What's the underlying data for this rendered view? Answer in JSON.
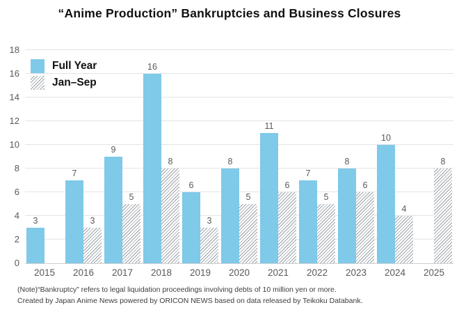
{
  "title": "“Anime Production” Bankruptcies and Business Closures",
  "legend": {
    "items": [
      {
        "label": "Full Year",
        "swatch": "solid-blue-square"
      },
      {
        "label": "Jan–Sep",
        "swatch": "gray-diagonal-hatch-square"
      }
    ]
  },
  "footnotes": {
    "line1": "(Note)“Bankruptcy” refers to legal liquidation proceedings involving debts of 10 million yen or more.",
    "line2": "Created by Japan Anime News powered by ORICON NEWS based on data released by Teikoku Databank."
  },
  "chart_data": {
    "type": "bar",
    "title": "“Anime Production” Bankruptcies and Business Closures",
    "categories": [
      "2015",
      "2016",
      "2017",
      "2018",
      "2019",
      "2020",
      "2021",
      "2022",
      "2023",
      "2024",
      "2025"
    ],
    "series": [
      {
        "name": "Full Year",
        "style": "solid",
        "values": [
          3,
          7,
          9,
          16,
          6,
          8,
          11,
          7,
          8,
          10,
          null
        ]
      },
      {
        "name": "Jan–Sep",
        "style": "hatch",
        "values": [
          null,
          3,
          5,
          8,
          3,
          5,
          6,
          5,
          6,
          4,
          8
        ]
      }
    ],
    "xlabel": "",
    "ylabel": "",
    "ylim": [
      0,
      18
    ],
    "yticks": [
      0,
      2,
      4,
      6,
      8,
      10,
      12,
      14,
      16,
      18
    ],
    "grid": true,
    "legend_position": "top-left",
    "colors": {
      "full_year": "#7FC9E9",
      "jan_sep_hatch": "#9AA1A8",
      "gridline": "#E4E4E4",
      "axis_text": "#595959",
      "title_text": "#111111",
      "footnote_text": "#3C3C3C"
    }
  }
}
